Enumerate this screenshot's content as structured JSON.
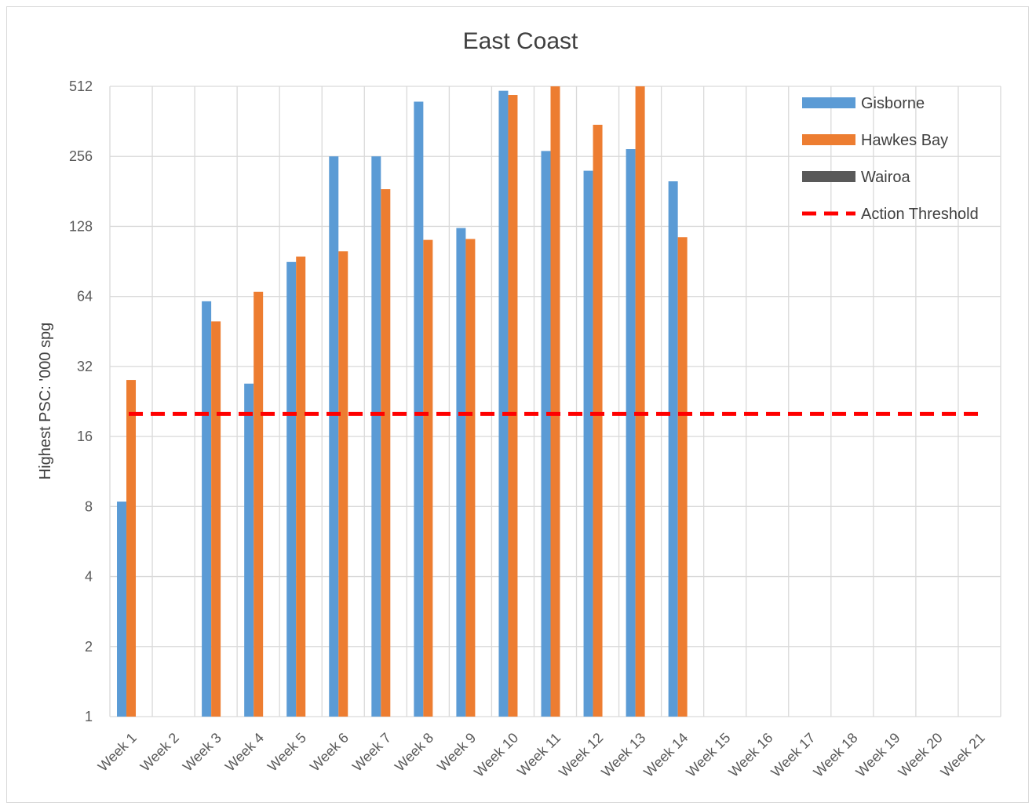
{
  "chart_data": {
    "type": "bar",
    "title": "East Coast",
    "xlabel": "",
    "ylabel": "Highest PSC: '000 spg",
    "y_scale": "log2",
    "ylim": [
      1,
      512
    ],
    "yticks": [
      "1",
      "2",
      "4",
      "8",
      "16",
      "32",
      "64",
      "128",
      "256",
      "512"
    ],
    "grid": true,
    "legend_position": "top-right",
    "categories": [
      "Week 1",
      "Week 2",
      "Week 3",
      "Week 4",
      "Week 5",
      "Week 6",
      "Week 7",
      "Week 8",
      "Week 9",
      "Week 10",
      "Week 11",
      "Week 12",
      "Week 13",
      "Week 14",
      "Week 15",
      "Week 16",
      "Week 17",
      "Week 18",
      "Week 19",
      "Week 20",
      "Week 21"
    ],
    "series": [
      {
        "name": "Gisborne",
        "color": "#5b9bd5",
        "kind": "bar",
        "values": [
          8.4,
          null,
          61,
          27,
          90,
          256,
          256,
          440,
          126,
          490,
          270,
          222,
          275,
          200,
          null,
          null,
          null,
          null,
          null,
          null,
          null
        ]
      },
      {
        "name": "Hawkes Bay",
        "color": "#ed7d31",
        "kind": "bar",
        "values": [
          28,
          null,
          50,
          67,
          95,
          100,
          185,
          112,
          113,
          470,
          512,
          350,
          512,
          115,
          null,
          null,
          null,
          null,
          null,
          null,
          null
        ]
      },
      {
        "name": "Wairoa",
        "color": "#595959",
        "kind": "bar",
        "values": [
          null,
          null,
          null,
          null,
          null,
          null,
          null,
          null,
          null,
          null,
          null,
          null,
          null,
          null,
          null,
          null,
          null,
          null,
          null,
          null,
          null
        ]
      },
      {
        "name": "Action Threshold",
        "color": "#ff0000",
        "kind": "dashed-line",
        "values": [
          20,
          20,
          20,
          20,
          20,
          20,
          20,
          20,
          20,
          20,
          20,
          20,
          20,
          20,
          20,
          20,
          20,
          20,
          20,
          20,
          20
        ]
      }
    ]
  }
}
